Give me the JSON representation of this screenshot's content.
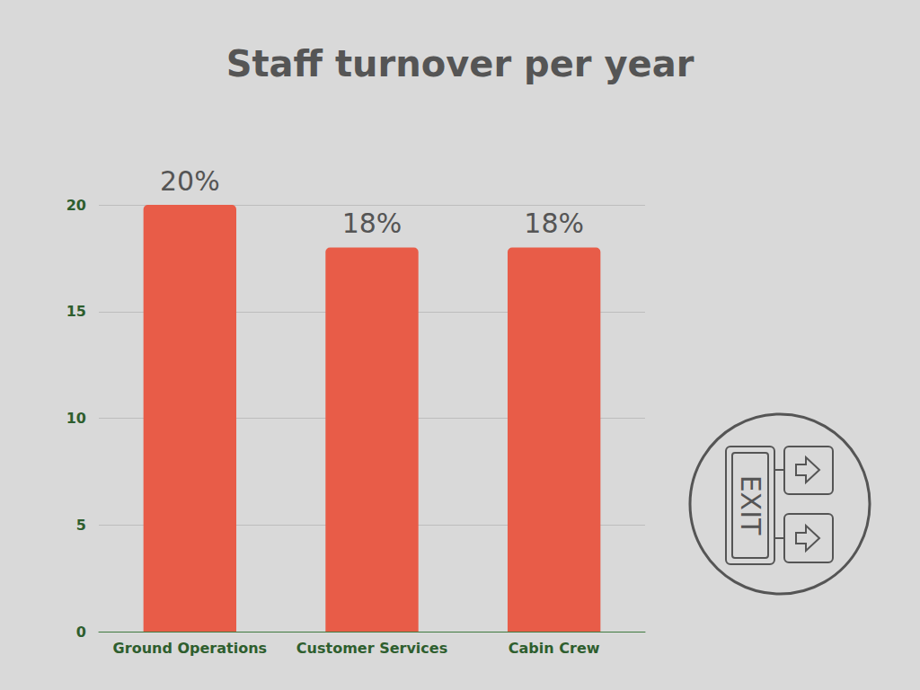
{
  "chart_data": {
    "type": "bar",
    "title": "Staff turnover per year",
    "categories": [
      "Ground Operations",
      "Customer Services",
      "Cabin Crew"
    ],
    "values": [
      20,
      18,
      18
    ],
    "value_labels": [
      "20%",
      "18%",
      "18%"
    ],
    "color": "#e85c48",
    "ylim": [
      0,
      20
    ],
    "yticks": [
      0,
      5,
      10,
      15,
      20
    ],
    "grid": true,
    "data_labels": true,
    "annotation": "EXIT"
  }
}
